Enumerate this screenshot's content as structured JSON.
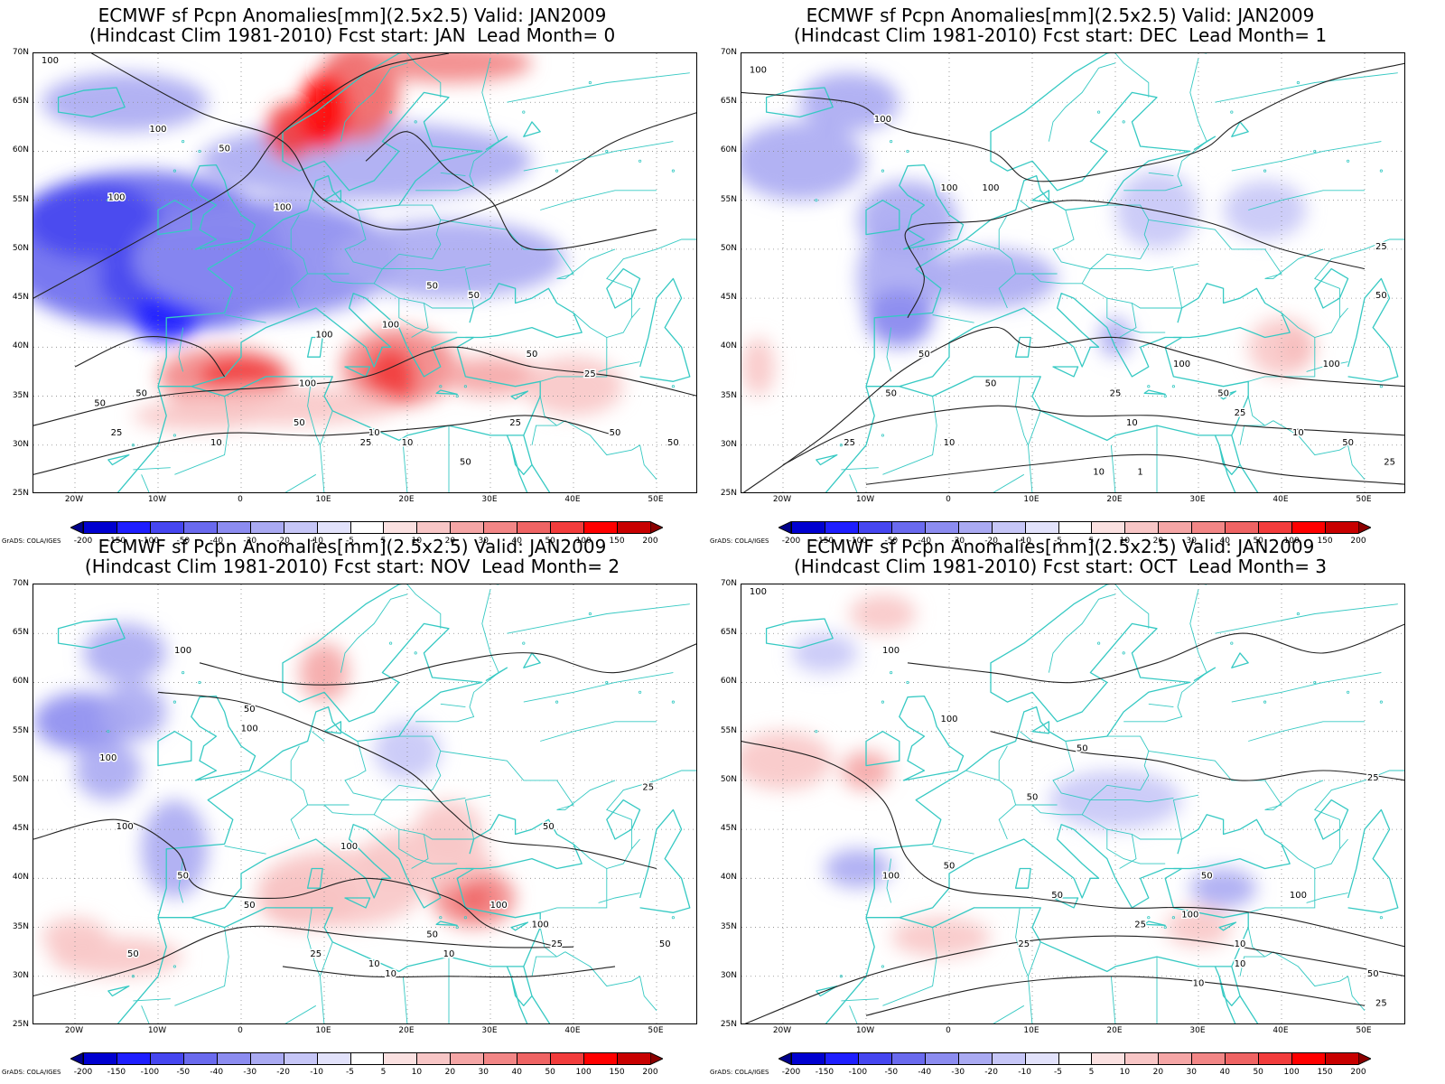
{
  "panels": [
    {
      "title1": "ECMWF sf Pcpn Anomalies[mm](2.5x2.5) Valid: JAN2009",
      "title2": "(Hindcast Clim 1981-2010) Fcst start: JAN  Lead Month= 0"
    },
    {
      "title1": "ECMWF sf Pcpn Anomalies[mm](2.5x2.5) Valid: JAN2009",
      "title2": "(Hindcast Clim 1981-2010) Fcst start: DEC  Lead Month= 1"
    },
    {
      "title1": "ECMWF sf Pcpn Anomalies[mm](2.5x2.5) Valid: JAN2009",
      "title2": "(Hindcast Clim 1981-2010) Fcst start: NOV  Lead Month= 2"
    },
    {
      "title1": "ECMWF sf Pcpn Anomalies[mm](2.5x2.5) Valid: JAN2009",
      "title2": "(Hindcast Clim 1981-2010) Fcst start: OCT  Lead Month= 3"
    }
  ],
  "lat_labels": [
    "70N",
    "65N",
    "60N",
    "55N",
    "50N",
    "45N",
    "40N",
    "35N",
    "30N",
    "25N"
  ],
  "lon_labels": [
    "20W",
    "10W",
    "0",
    "10E",
    "20E",
    "30E",
    "40E",
    "50E"
  ],
  "colorbar": {
    "labels": [
      "-200",
      "-150",
      "-100",
      "-50",
      "-40",
      "-30",
      "-20",
      "-10",
      "-5",
      "5",
      "10",
      "20",
      "30",
      "40",
      "50",
      "100",
      "150",
      "200"
    ],
    "colors": [
      "#00008b",
      "#0000d0",
      "#1e1eff",
      "#4646f0",
      "#6a6aee",
      "#8c8cf0",
      "#aaaaf2",
      "#c6c6f7",
      "#e2e2fb",
      "#ffffff",
      "#fbe1e1",
      "#f8c6c6",
      "#f5a6a6",
      "#f28686",
      "#ef6464",
      "#f23c3c",
      "#ff0000",
      "#c80000",
      "#8b0000"
    ]
  },
  "credit": "GrADS: COLA/IGES",
  "contour_labels": [
    [
      "100",
      "100",
      "50",
      "100",
      "50",
      "50",
      "25",
      "25",
      "50",
      "100",
      "100",
      "50",
      "50",
      "100",
      "50",
      "25",
      "10",
      "10",
      "25",
      "50",
      "50",
      "10",
      "50",
      "100"
    ],
    [
      "100",
      "100",
      "100",
      "25",
      "50",
      "50",
      "100",
      "50",
      "50",
      "25",
      "10",
      "10",
      "25",
      "50",
      "10",
      "1",
      "25",
      "100",
      "50",
      "25",
      "10",
      "100"
    ],
    [
      "100",
      "100",
      "100",
      "100",
      "50",
      "50",
      "100",
      "100",
      "50",
      "50",
      "25",
      "10",
      "50",
      "10",
      "100",
      "50",
      "25",
      "50",
      "10",
      "25",
      "100"
    ],
    [
      "100",
      "100",
      "100",
      "50",
      "50",
      "50",
      "25",
      "50",
      "100",
      "50",
      "25",
      "10",
      "10",
      "25",
      "100",
      "50",
      "25",
      "10",
      "100"
    ]
  ]
}
